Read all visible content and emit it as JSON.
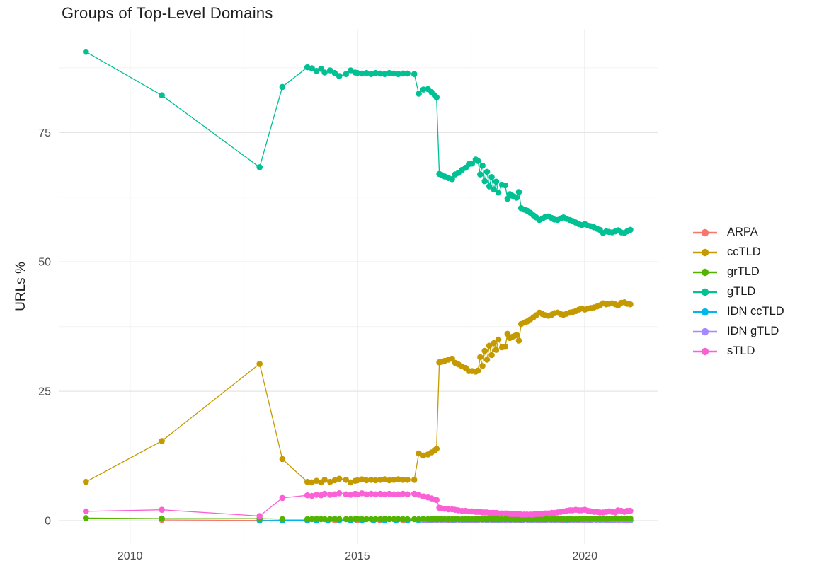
{
  "chart_data": {
    "type": "line",
    "title": "Groups of Top-Level Domains",
    "xlabel": "",
    "ylabel": "URLs %",
    "grid": true,
    "legend_position": "right",
    "xlim": [
      2008.45,
      2021.6
    ],
    "ylim": [
      -4.5,
      95
    ],
    "x_ticks": [
      2010,
      2015,
      2020
    ],
    "x_tick_labels": [
      "2010",
      "2015",
      "2020"
    ],
    "x_minor": [
      2012.5,
      2017.5
    ],
    "y_ticks": [
      0,
      25,
      50,
      75
    ],
    "y_tick_labels": [
      "0",
      "25",
      "50",
      "75"
    ],
    "y_minor": [
      12.5,
      37.5,
      62.5,
      87.5
    ],
    "colors": {
      "ARPA": "#F8766D",
      "ccTLD": "#C49A00",
      "grTLD": "#53B400",
      "gTLD": "#00C094",
      "IDN ccTLD": "#00B6EB",
      "IDN gTLD": "#A58AFF",
      "sTLD": "#FB61D7"
    },
    "axis_text_color": "#4d4d4d",
    "grid_major_color": "#e5e5e5",
    "grid_minor_color": "#f2f2f2",
    "draw_order": [
      "ARPA",
      "IDN ccTLD",
      "IDN gTLD",
      "gTLD",
      "ccTLD",
      "grTLD",
      "sTLD"
    ],
    "shared_x": [
      2009.03,
      2010.7,
      2012.85,
      2013.35,
      2013.9,
      2014.0,
      2014.1,
      2014.2,
      2014.28,
      2014.4,
      2014.5,
      2014.6,
      2014.75,
      2014.85,
      2014.95,
      2015.0,
      2015.1,
      2015.2,
      2015.3,
      2015.4,
      2015.5,
      2015.6,
      2015.7,
      2015.8,
      2015.9,
      2016.0,
      2016.1,
      2016.25,
      2016.35,
      2016.45,
      2016.55,
      2016.63,
      2016.7,
      2016.74,
      2016.8,
      2016.85,
      2016.92,
      2017.0,
      2017.08,
      2017.15,
      2017.22,
      2017.3,
      2017.38,
      2017.45,
      2017.52,
      2017.6,
      2017.65,
      2017.7,
      2017.75,
      2017.8,
      2017.85,
      2017.9,
      2017.95,
      2018.0,
      2018.05,
      2018.1,
      2018.18,
      2018.25,
      2018.3,
      2018.35,
      2018.4,
      2018.45,
      2018.5,
      2018.55,
      2018.6,
      2018.67,
      2018.73,
      2018.8,
      2018.87,
      2018.93,
      2019.0,
      2019.07,
      2019.13,
      2019.2,
      2019.27,
      2019.33,
      2019.4,
      2019.47,
      2019.53,
      2019.6,
      2019.67,
      2019.73,
      2019.8,
      2019.87,
      2019.93,
      2020.0,
      2020.07,
      2020.13,
      2020.2,
      2020.27,
      2020.33,
      2020.4,
      2020.47,
      2020.53,
      2020.6,
      2020.67,
      2020.73,
      2020.8,
      2020.87,
      2020.93,
      2021.0
    ],
    "series": [
      {
        "name": "ARPA",
        "color": "#F8766D",
        "x": [
          2010.7,
          2012.85,
          2013.35,
          2013.9,
          2014.5,
          2015.0,
          2015.5,
          2016.0,
          2016.5,
          2017.0,
          2017.5,
          2018.0,
          2018.5,
          2019.0,
          2019.5,
          2020.0,
          2020.5,
          2021.0
        ],
        "y": [
          0.15,
          0.06,
          0.05,
          0.05,
          0.05,
          0.05,
          0.05,
          0.05,
          0.05,
          0.05,
          0.05,
          0.05,
          0.05,
          0.05,
          0.05,
          0.05,
          0.05,
          0.05
        ]
      },
      {
        "name": "ccTLD",
        "color": "#C49A00",
        "y": [
          7.5,
          15.4,
          30.3,
          11.9,
          7.5,
          7.4,
          7.7,
          7.4,
          7.9,
          7.5,
          7.8,
          8.1,
          7.9,
          7.4,
          7.7,
          7.8,
          8.0,
          7.8,
          7.9,
          7.8,
          7.9,
          8.0,
          7.8,
          7.9,
          8.0,
          7.9,
          7.9,
          7.9,
          13.0,
          12.6,
          12.8,
          13.2,
          13.6,
          13.9,
          30.6,
          30.7,
          30.9,
          31.1,
          31.3,
          30.5,
          30.2,
          29.8,
          29.5,
          28.9,
          28.9,
          28.8,
          29.0,
          31.6,
          29.9,
          32.8,
          31.1,
          33.8,
          32.0,
          34.3,
          33.0,
          35.0,
          33.5,
          33.6,
          36.1,
          35.3,
          35.5,
          35.7,
          35.9,
          34.8,
          38.0,
          38.3,
          38.5,
          38.9,
          39.3,
          39.7,
          40.2,
          39.9,
          39.7,
          39.6,
          39.8,
          40.1,
          40.2,
          39.9,
          39.8,
          40.0,
          40.2,
          40.3,
          40.5,
          40.8,
          41.0,
          40.8,
          41.0,
          41.1,
          41.2,
          41.4,
          41.6,
          42.0,
          41.8,
          41.9,
          42.0,
          41.8,
          41.6,
          42.1,
          42.2,
          41.9,
          41.8
        ]
      },
      {
        "name": "grTLD",
        "color": "#53B400",
        "y": [
          0.5,
          0.4,
          0.4,
          0.3,
          0.3,
          0.3,
          0.35,
          0.3,
          0.3,
          0.3,
          0.35,
          0.3,
          0.3,
          0.3,
          0.3,
          0.35,
          0.3,
          0.3,
          0.3,
          0.3,
          0.3,
          0.35,
          0.3,
          0.3,
          0.3,
          0.3,
          0.3,
          0.3,
          0.3,
          0.35,
          0.3,
          0.3,
          0.3,
          0.3,
          0.3,
          0.3,
          0.3,
          0.3,
          0.3,
          0.3,
          0.3,
          0.3,
          0.3,
          0.3,
          0.3,
          0.3,
          0.3,
          0.3,
          0.3,
          0.3,
          0.3,
          0.3,
          0.3,
          0.3,
          0.3,
          0.3,
          0.3,
          0.3,
          0.3,
          0.3,
          0.3,
          0.3,
          0.3,
          0.3,
          0.3,
          0.3,
          0.3,
          0.3,
          0.3,
          0.3,
          0.3,
          0.3,
          0.3,
          0.3,
          0.3,
          0.3,
          0.3,
          0.3,
          0.3,
          0.3,
          0.3,
          0.3,
          0.3,
          0.3,
          0.35,
          0.35,
          0.35,
          0.35,
          0.35,
          0.35,
          0.35,
          0.35,
          0.35,
          0.35,
          0.4,
          0.4,
          0.4,
          0.4,
          0.4,
          0.4,
          0.4
        ]
      },
      {
        "name": "gTLD",
        "color": "#00C094",
        "y": [
          90.6,
          82.2,
          68.3,
          83.8,
          87.6,
          87.4,
          86.9,
          87.3,
          86.6,
          87.0,
          86.5,
          85.9,
          86.3,
          87.0,
          86.6,
          86.5,
          86.4,
          86.5,
          86.3,
          86.5,
          86.4,
          86.3,
          86.5,
          86.4,
          86.3,
          86.4,
          86.4,
          86.3,
          82.5,
          83.3,
          83.4,
          82.8,
          82.2,
          81.8,
          67.0,
          66.8,
          66.5,
          66.2,
          66.0,
          66.9,
          67.2,
          67.8,
          68.2,
          68.9,
          69.0,
          69.8,
          69.5,
          66.9,
          68.6,
          65.6,
          67.4,
          64.6,
          66.4,
          64.0,
          65.5,
          63.4,
          64.9,
          64.8,
          62.2,
          63.1,
          62.8,
          62.6,
          62.4,
          63.5,
          60.4,
          60.1,
          59.9,
          59.5,
          59.0,
          58.6,
          58.1,
          58.4,
          58.7,
          58.8,
          58.5,
          58.2,
          58.1,
          58.4,
          58.6,
          58.3,
          58.1,
          57.9,
          57.6,
          57.3,
          57.1,
          57.3,
          57.0,
          56.9,
          56.7,
          56.4,
          56.2,
          55.6,
          55.9,
          55.8,
          55.7,
          55.9,
          56.1,
          55.7,
          55.6,
          55.9,
          56.2
        ]
      },
      {
        "name": "IDN ccTLD",
        "color": "#00B6EB",
        "x": [
          2012.85,
          2013.35,
          2013.9,
          2014.1,
          2014.35,
          2014.6,
          2014.85,
          2015.1,
          2015.35,
          2015.6,
          2015.85,
          2016.1,
          2016.35,
          2016.6,
          2016.85,
          2017.1,
          2017.35,
          2017.6,
          2017.85,
          2018.1,
          2018.35,
          2018.6,
          2018.85,
          2019.1,
          2019.35,
          2019.6,
          2019.85,
          2020.1,
          2020.35,
          2020.6,
          2020.85,
          2021.0
        ],
        "y": [
          0.02,
          0.05,
          0.05,
          0.05,
          0.05,
          0.05,
          0.05,
          0.05,
          0.05,
          0.05,
          0.05,
          0.05,
          0.05,
          0.05,
          0.05,
          0.05,
          0.05,
          0.05,
          0.05,
          0.05,
          0.05,
          0.05,
          0.05,
          0.05,
          0.05,
          0.05,
          0.05,
          0.05,
          0.05,
          0.05,
          0.05,
          0.05
        ]
      },
      {
        "name": "IDN gTLD",
        "color": "#A58AFF",
        "x": [
          2016.45,
          2016.55,
          2016.65,
          2016.75,
          2016.85,
          2016.95,
          2017.05,
          2017.15,
          2017.25,
          2017.35,
          2017.45,
          2017.55,
          2017.65,
          2017.75,
          2017.85,
          2017.95,
          2018.05,
          2018.15,
          2018.25,
          2018.35,
          2018.45,
          2018.55,
          2018.65,
          2018.75,
          2018.85,
          2018.95,
          2019.05,
          2019.15,
          2019.25,
          2019.35,
          2019.45,
          2019.55,
          2019.65,
          2019.75,
          2019.85,
          2019.95,
          2020.05,
          2020.15,
          2020.25,
          2020.35,
          2020.45,
          2020.55,
          2020.65,
          2020.75,
          2020.85,
          2020.95,
          2021.0
        ],
        "y": [
          0.1,
          0.1,
          0.1,
          0.1,
          0.1,
          0.1,
          0.1,
          0.1,
          0.1,
          0.1,
          0.1,
          0.1,
          0.1,
          0.1,
          0.1,
          0.1,
          0.1,
          0.1,
          0.1,
          0.1,
          0.1,
          0.1,
          0.1,
          0.1,
          0.1,
          0.1,
          0.1,
          0.1,
          0.1,
          0.1,
          0.1,
          0.1,
          0.1,
          0.1,
          0.1,
          0.1,
          0.1,
          0.1,
          0.1,
          0.1,
          0.1,
          0.1,
          0.1,
          0.1,
          0.1,
          0.1,
          0.1
        ]
      },
      {
        "name": "sTLD",
        "color": "#FB61D7",
        "y": [
          1.8,
          2.1,
          0.9,
          4.4,
          4.9,
          4.8,
          5.0,
          4.9,
          5.2,
          5.0,
          5.1,
          5.3,
          5.1,
          5.0,
          5.2,
          5.1,
          5.3,
          5.1,
          5.2,
          5.1,
          5.2,
          5.1,
          5.2,
          5.1,
          5.1,
          5.2,
          5.1,
          5.2,
          5.0,
          4.7,
          4.5,
          4.3,
          4.1,
          4.0,
          2.5,
          2.4,
          2.3,
          2.2,
          2.2,
          2.1,
          2.0,
          1.9,
          1.9,
          1.8,
          1.8,
          1.7,
          1.7,
          1.7,
          1.6,
          1.6,
          1.6,
          1.5,
          1.5,
          1.5,
          1.5,
          1.4,
          1.4,
          1.4,
          1.4,
          1.3,
          1.3,
          1.3,
          1.3,
          1.3,
          1.2,
          1.2,
          1.2,
          1.2,
          1.2,
          1.3,
          1.3,
          1.3,
          1.4,
          1.4,
          1.5,
          1.5,
          1.6,
          1.7,
          1.8,
          1.9,
          2.0,
          2.0,
          2.1,
          2.0,
          2.0,
          2.1,
          1.9,
          1.8,
          1.7,
          1.7,
          1.6,
          1.6,
          1.7,
          1.8,
          1.7,
          1.6,
          2.0,
          1.9,
          1.7,
          1.9,
          1.9
        ]
      }
    ]
  }
}
